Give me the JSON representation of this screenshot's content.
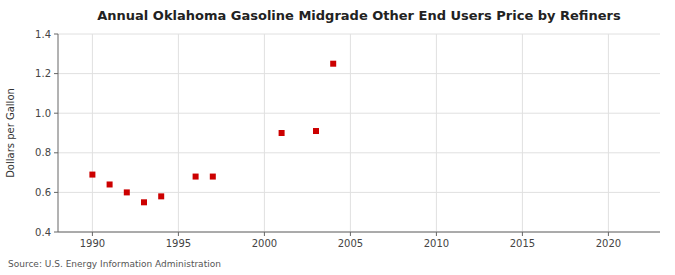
{
  "chart_data": {
    "type": "scatter",
    "title": "Annual Oklahoma Gasoline Midgrade Other End Users Price by Refiners",
    "ylabel": "Dollars per Gallon",
    "annotations": [
      "Source: U.S. Energy Information Administration"
    ],
    "x": [
      1990,
      1991,
      1992,
      1993,
      1994,
      1996,
      1997,
      2001,
      2003,
      2004
    ],
    "values": [
      0.69,
      0.64,
      0.6,
      0.55,
      0.58,
      0.68,
      0.68,
      0.9,
      0.91,
      1.25
    ],
    "color": "#cc0000",
    "marker": "square",
    "xlim": [
      1988,
      2023
    ],
    "ylim": [
      0.4,
      1.4
    ],
    "xticks": [
      1990,
      1995,
      2000,
      2005,
      2010,
      2015,
      2020
    ],
    "yticks": [
      0.4,
      0.6,
      0.8,
      {
        "value": 1,
        "label": "1.0"
      },
      1.2,
      1.4
    ],
    "grid": true
  }
}
